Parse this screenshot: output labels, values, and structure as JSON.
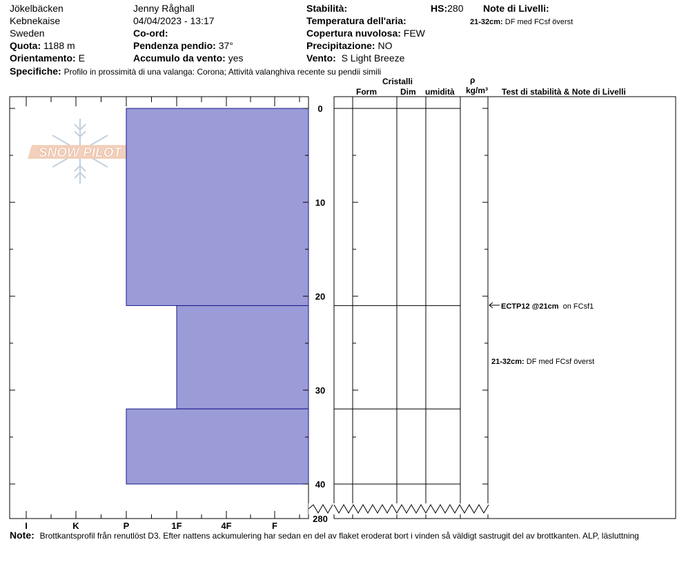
{
  "header": {
    "location": "Jökelbäcken",
    "region": "Kebnekaise",
    "country": "Sweden",
    "observer": "Jenny Råghall",
    "datetime": "04/04/2023 - 13:17",
    "quota_label": "Quota:",
    "quota_value": "1188 m",
    "orient_label": "Orientamento:",
    "orient_value": "E",
    "coord_label": "Co-ord:",
    "slope_label": "Pendenza pendio:",
    "slope_value": "37°",
    "wind_load_label": "Accumulo da vento:",
    "wind_load_value": "yes",
    "stability_label": "Stabilità:",
    "hs_label": "HS:",
    "hs_value": "280",
    "air_temp_label": "Temperatura dell'aria:",
    "cloud_label": "Copertura nuvolosa:",
    "cloud_value": "FEW",
    "precip_label": "Precipitazione:",
    "precip_value": "NO",
    "wind_label": "Vento:",
    "wind_value": "S Light Breeze",
    "layer_notes_label": "Note di Livelli:",
    "layer_note_range": "21-32cm:",
    "layer_note_text": "DF med FCsf överst",
    "specifics_label": "Specifiche:",
    "specifics_value": "Profilo in prossimità di una valanga: Corona;  Attività valanghiva recente su pendii simili"
  },
  "columns": {
    "cristalli": "Cristalli",
    "form": "Form",
    "dim": "Dim",
    "humidity": "umidità",
    "rho": "ρ",
    "density_unit": "kg/m³",
    "tests_notes": "Test di stabilità & Note di Livelli"
  },
  "watermark": "SNOW PILOT",
  "footer": {
    "note_label": "Note:",
    "note_text": "Brottkantsprofil från renutlöst D3. Efter nattens ackumulering har sedan en del av flaket eroderat bort i vinden så väldigt sastrugit del av brottkanten. ALP, läsluttning"
  },
  "annotations": {
    "test_bold": "ECTP12 @21cm",
    "test_text": "on FCsf1",
    "note_range": "21-32cm:",
    "note_text": "DF med FCsf överst"
  },
  "colors": {
    "layer_fill": "#9b9bd7",
    "layer_stroke": "#1a1a8c"
  },
  "chart_data": {
    "type": "bar",
    "title": "",
    "xlabel": "",
    "ylabel": "",
    "hardness_scale": [
      "I",
      "K",
      "P",
      "1F",
      "4F",
      "F"
    ],
    "y_ticks": [
      0,
      10,
      20,
      30,
      40
    ],
    "y_bottom_label": "280",
    "ylim": [
      0,
      40
    ],
    "layers": [
      {
        "top": 0,
        "bottom": 21,
        "hardness": "P"
      },
      {
        "top": 21,
        "bottom": 32,
        "hardness": "1F"
      },
      {
        "top": 32,
        "bottom": 40,
        "hardness": "P"
      }
    ],
    "layer_boundaries": [
      0,
      21,
      32,
      40
    ],
    "grid": false
  }
}
